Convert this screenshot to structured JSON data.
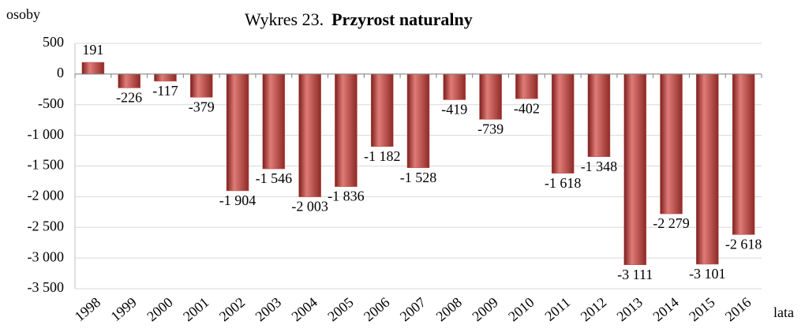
{
  "chart_data": {
    "type": "bar",
    "title_number": "Wykres 23.",
    "title": "Przyrost naturalny",
    "y_label": "osoby",
    "x_label": "lata",
    "categories": [
      "1998",
      "1999",
      "2000",
      "2001",
      "2002",
      "2003",
      "2004",
      "2005",
      "2006",
      "2007",
      "2008",
      "2009",
      "2010",
      "2011",
      "2012",
      "2013",
      "2014",
      "2015",
      "2016"
    ],
    "values": [
      191,
      -226,
      -117,
      -379,
      -1904,
      -1546,
      -2003,
      -1836,
      -1182,
      -1528,
      -419,
      -739,
      -402,
      -1618,
      -1348,
      -3111,
      -2279,
      -3101,
      -2618
    ],
    "value_labels": [
      "191",
      "-226",
      "-117",
      "-379",
      "-1 904",
      "-1 546",
      "-2 003",
      "-1 836",
      "-1 182",
      "-1 528",
      "-419",
      "-739",
      "-402",
      "-1 618",
      "-1 348",
      "-3 111",
      "-2 279",
      "-3 101",
      "-2 618"
    ],
    "color": "#c0504d",
    "ylim": [
      -3500,
      500
    ],
    "yticks": [
      500,
      0,
      -500,
      {
        "value": -1000,
        "label": "-1 000"
      },
      {
        "value": -1500,
        "label": "-1 500"
      },
      {
        "value": -2000,
        "label": "-2 000"
      },
      {
        "value": -2500,
        "label": "-2 500"
      },
      {
        "value": -3000,
        "label": "-3 000"
      },
      {
        "value": -3500,
        "label": "-3 500"
      }
    ],
    "grid": true
  }
}
